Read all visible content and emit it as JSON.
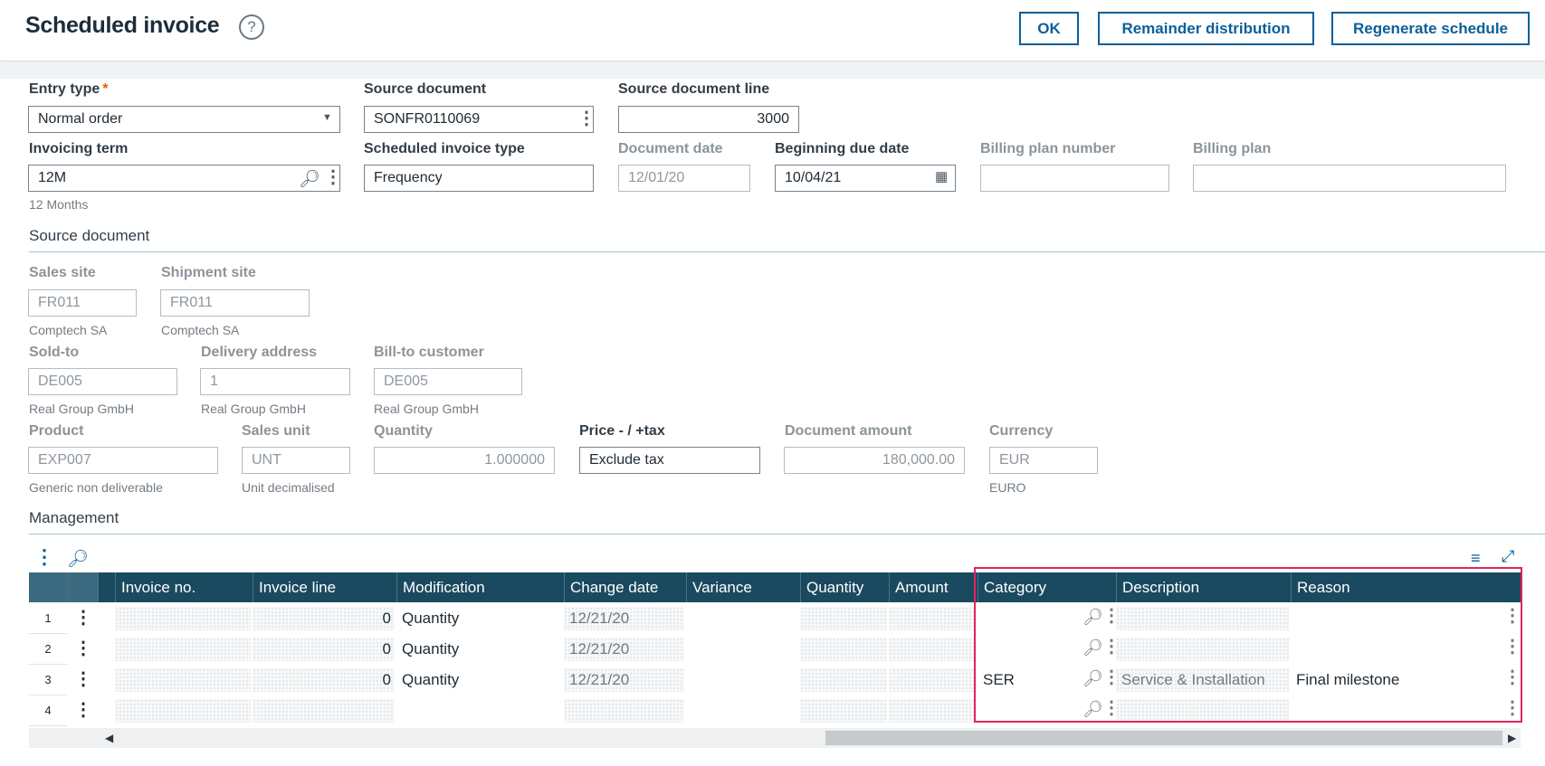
{
  "header": {
    "title": "Scheduled invoice",
    "help_symbol": "?",
    "buttons": {
      "ok": "OK",
      "remainder": "Remainder distribution",
      "regenerate": "Regenerate schedule"
    }
  },
  "form": {
    "entry_type": {
      "label": "Entry type",
      "required_mark": "*",
      "value": "Normal order"
    },
    "source_document": {
      "label": "Source document",
      "value": "SONFR0110069"
    },
    "source_document_line": {
      "label": "Source document line",
      "value": "3000"
    },
    "invoicing_term": {
      "label": "Invoicing term",
      "value": "12M",
      "description": "12 Months"
    },
    "scheduled_invoice_type": {
      "label": "Scheduled invoice type",
      "value": "Frequency"
    },
    "document_date": {
      "label": "Document date",
      "value": "12/01/20"
    },
    "beginning_due_date": {
      "label": "Beginning due date",
      "value": "10/04/21"
    },
    "billing_plan_number": {
      "label": "Billing plan number",
      "value": ""
    },
    "billing_plan": {
      "label": "Billing plan",
      "value": ""
    }
  },
  "source_section": {
    "title": "Source document",
    "sales_site": {
      "label": "Sales site",
      "value": "FR011",
      "description": "Comptech SA"
    },
    "shipment_site": {
      "label": "Shipment site",
      "value": "FR011",
      "description": "Comptech SA"
    },
    "sold_to": {
      "label": "Sold-to",
      "value": "DE005",
      "description": "Real Group GmbH"
    },
    "delivery_address": {
      "label": "Delivery address",
      "value": "1",
      "description": "Real Group GmbH"
    },
    "bill_to": {
      "label": "Bill-to customer",
      "value": "DE005",
      "description": "Real Group GmbH"
    },
    "product": {
      "label": "Product",
      "value": "EXP007",
      "description": "Generic non deliverable"
    },
    "sales_unit": {
      "label": "Sales unit",
      "value": "UNT",
      "description": "Unit decimalised"
    },
    "quantity": {
      "label": "Quantity",
      "value": "1.000000"
    },
    "price_tax": {
      "label": "Price - / +tax",
      "value": "Exclude tax"
    },
    "document_amount": {
      "label": "Document amount",
      "value": "180,000.00"
    },
    "currency": {
      "label": "Currency",
      "value": "EUR",
      "description": "EURO"
    }
  },
  "management": {
    "title": "Management",
    "columns": [
      "Invoice no.",
      "Invoice line",
      "Modification",
      "Change date",
      "Variance",
      "Quantity",
      "Amount",
      "Category",
      "Description",
      "Reason"
    ],
    "rows": [
      {
        "n": "1",
        "invoice_no": "",
        "invoice_line": "0",
        "modification": "Quantity",
        "change_date": "12/21/20",
        "variance": "",
        "quantity": "",
        "amount": "",
        "category": "",
        "description": "",
        "reason": ""
      },
      {
        "n": "2",
        "invoice_no": "",
        "invoice_line": "0",
        "modification": "Quantity",
        "change_date": "12/21/20",
        "variance": "",
        "quantity": "",
        "amount": "",
        "category": "",
        "description": "",
        "reason": ""
      },
      {
        "n": "3",
        "invoice_no": "",
        "invoice_line": "0",
        "modification": "Quantity",
        "change_date": "12/21/20",
        "variance": "",
        "quantity": "",
        "amount": "",
        "category": "SER",
        "description": "Service & Installation",
        "reason": "Final milestone"
      },
      {
        "n": "4",
        "invoice_no": "",
        "invoice_line": "",
        "modification": "",
        "change_date": "",
        "variance": "",
        "quantity": "",
        "amount": "",
        "category": "",
        "description": "",
        "reason": ""
      }
    ]
  },
  "colors": {
    "accent": "#0b5f99",
    "grid_header": "#1a4a5f",
    "required": "#e8590c",
    "highlight": "#e0245e"
  }
}
